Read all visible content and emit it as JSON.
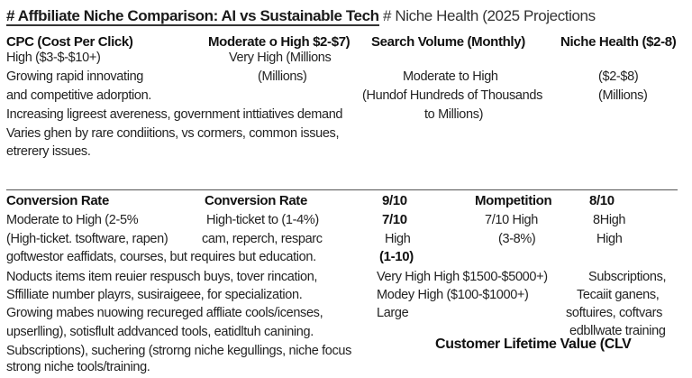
{
  "title": {
    "main": "# Affbiliate Niche Comparison: AI vs   Sustainable Tech",
    "sub": " # Niche Health (2025 Projections"
  },
  "section1": {
    "col1_heading": "CPC (Cost Per Click)",
    "col1_lines": [
      "High ($3-$-$10+)",
      "Growing rapid innovating",
      "and competitive adorption.",
      "Increasing ligreest avereness, government inttiatives demand",
      "Varies ghen by rare condiitions, vs cormers, common issues,",
      "etrerery issues."
    ],
    "col2_heading": "Moderate o High $2-$7)",
    "col2_lines": [
      "Very High (Millions",
      "(Millions)"
    ],
    "col3_heading": "Search Volume (Monthly)",
    "col3_lines": [
      "Moderate to High",
      "(Hundof Hundreds of Thousands",
      "to Millions)"
    ],
    "col4_heading": "Niche Health ($2-8)",
    "col4_lines": [
      "($2-$8)",
      "(Millions)"
    ]
  },
  "section2": {
    "col1_heading": "Conversion Rate",
    "col1_lines": [
      "Moderate to High (2-5%",
      "(High-ticket. tsoftware, rapen)",
      "goftwestor eaffidats, courses, but requires but education.",
      "Noducts items item reuier respusch buys, tover rincation,",
      "Sffilliate number playrs, susiraigeee, for specialization.",
      "Growing mabes nuowing recureged affliate cools/icenses,",
      "upserlling),  sotisflult addvanced tools, eatidltuh canining.",
      "Subscriptions), suchering (strorng niche kegullings, niche focus",
      "strong niche tools/training."
    ],
    "col2_heading": "Conversion Rate",
    "col2_lines": [
      "High-ticket to (1-4%)",
      "cam, reperch, resparc"
    ],
    "col3_heading": "9/10",
    "col3_lines": [
      "7/10",
      "High",
      "(1-10)"
    ],
    "col3_extra": [
      "Very High High $1500-$5000+)",
      "Modey High ($100-$1000+)",
      "Large"
    ],
    "col4_heading": "Mompetition",
    "col4_lines": [
      "7/10 High",
      "(3-8%)"
    ],
    "col5_heading": "8/10",
    "col5_lines": [
      "8High",
      "High"
    ],
    "col5_extra": [
      "Subscriptions,",
      "Tecaiit ganens,",
      "softuires, coftvars",
      "edbllwate training"
    ],
    "footer_heading": "Customer Lifetime Value (CLV"
  }
}
